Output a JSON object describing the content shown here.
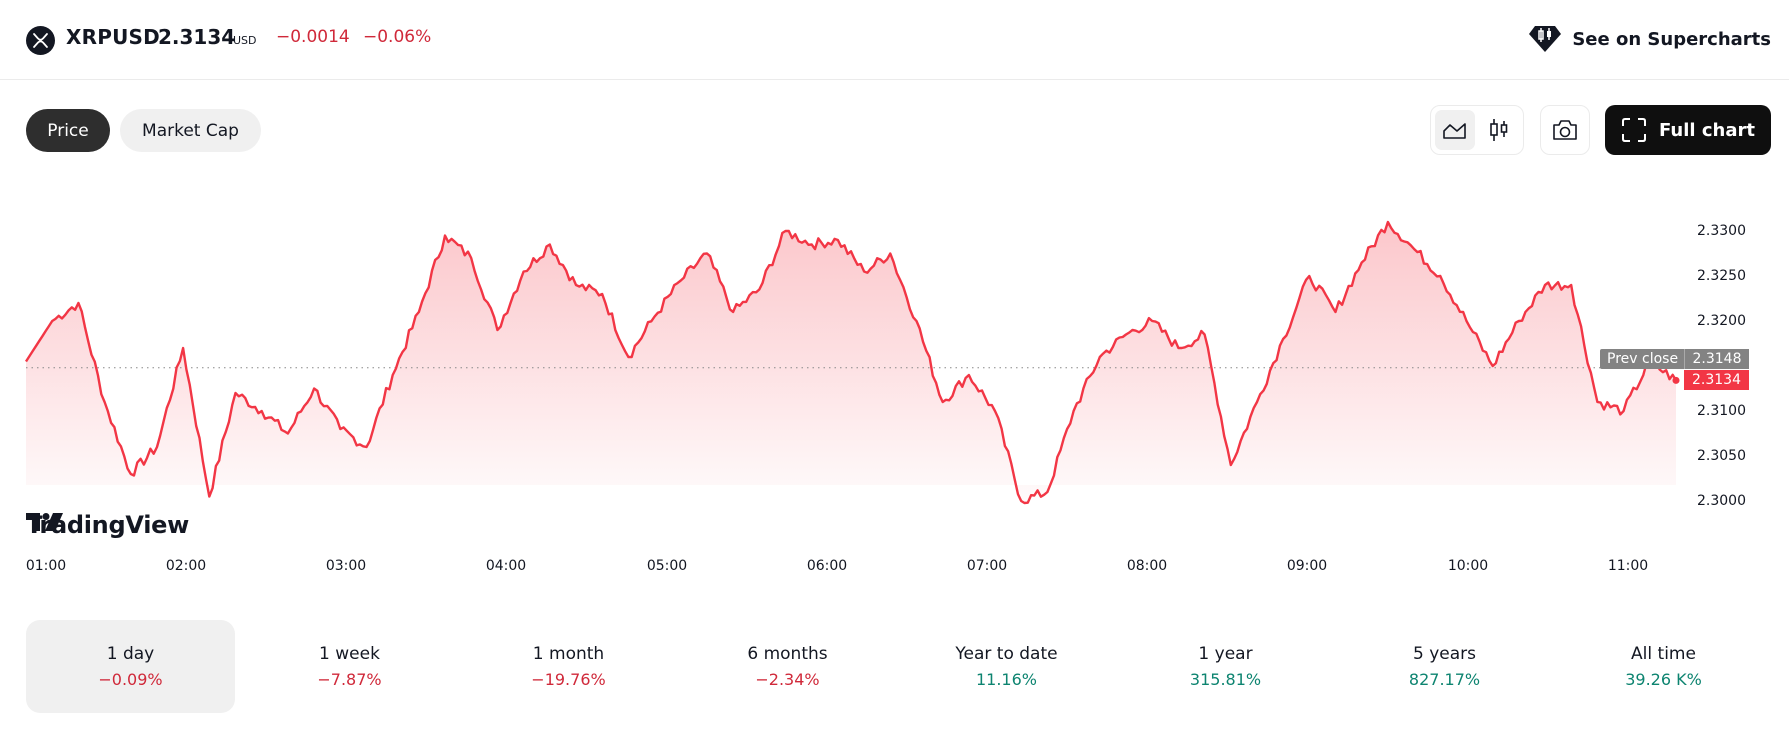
{
  "header": {
    "symbol": "XRPUSD",
    "price": "2.3134",
    "currency": "USD",
    "change": "−0.0014",
    "change_pct": "−0.06%",
    "supercharts_label": "See on Supercharts",
    "icons": {
      "symbol_logo": "xrp-logo-icon",
      "supercharts": "supercharts-icon"
    }
  },
  "tabs": [
    {
      "label": "Price",
      "active": true
    },
    {
      "label": "Market Cap",
      "active": false
    }
  ],
  "toolbar": {
    "chart_types": [
      {
        "name": "area-chart-icon",
        "active": true
      },
      {
        "name": "candlestick-icon",
        "active": false
      }
    ],
    "snapshot_icon": "camera-icon",
    "full_chart_label": "Full chart",
    "full_chart_icon": "fullscreen-icon"
  },
  "chart": {
    "prev_close_label": "Prev close",
    "prev_close_value": "2.3148",
    "current_value": "2.3134",
    "watermark": "TradingView",
    "line_color": "#f23645"
  },
  "chart_data": {
    "type": "area",
    "title": "XRPUSD 1 day",
    "xlabel": "",
    "ylabel": "",
    "x_ticks": [
      "01:00",
      "02:00",
      "03:00",
      "04:00",
      "05:00",
      "06:00",
      "07:00",
      "08:00",
      "09:00",
      "10:00",
      "11:00"
    ],
    "y_ticks": [
      "2.3300",
      "2.3250",
      "2.3200",
      "2.3100",
      "2.3050",
      "2.3000"
    ],
    "ylim": [
      2.2955,
      2.3365
    ],
    "grid": false,
    "reference_lines": [
      {
        "label": "Prev close",
        "value": 2.3148,
        "style": "dotted"
      }
    ],
    "last_value": 2.3134,
    "series": [
      {
        "name": "XRPUSD",
        "x": [
          "00:50",
          "01:00",
          "01:10",
          "01:20",
          "01:30",
          "01:40",
          "01:50",
          "02:00",
          "02:10",
          "02:20",
          "02:30",
          "02:40",
          "02:50",
          "03:00",
          "03:10",
          "03:20",
          "03:30",
          "03:40",
          "03:50",
          "04:00",
          "04:10",
          "04:20",
          "04:30",
          "04:40",
          "04:50",
          "05:00",
          "05:10",
          "05:20",
          "05:30",
          "05:40",
          "05:50",
          "06:00",
          "06:10",
          "06:20",
          "06:30",
          "06:40",
          "06:50",
          "07:00",
          "07:10",
          "07:20",
          "07:30",
          "07:40",
          "07:50",
          "08:00",
          "08:10",
          "08:20",
          "08:30",
          "08:40",
          "08:50",
          "09:00",
          "09:10",
          "09:20",
          "09:30",
          "09:40",
          "09:50",
          "10:00",
          "10:10",
          "10:20",
          "10:30",
          "10:40",
          "10:50",
          "11:00",
          "11:10",
          "11:20"
        ],
        "values": [
          2.3155,
          2.32,
          2.322,
          2.311,
          2.303,
          2.306,
          2.317,
          2.3005,
          2.312,
          2.31,
          2.3075,
          2.3125,
          2.308,
          2.306,
          2.314,
          2.321,
          2.3295,
          2.327,
          2.319,
          2.3255,
          2.3285,
          2.324,
          2.323,
          2.316,
          2.3205,
          2.3245,
          2.3275,
          2.321,
          2.3235,
          2.33,
          2.3285,
          2.329,
          2.3255,
          2.3275,
          2.32,
          2.311,
          2.314,
          2.31,
          2.3,
          2.301,
          2.31,
          2.316,
          2.3185,
          2.32,
          2.317,
          2.3185,
          2.304,
          2.311,
          2.318,
          2.325,
          2.321,
          2.3265,
          2.331,
          2.328,
          2.325,
          2.32,
          2.315,
          2.32,
          2.324,
          2.324,
          2.311,
          2.31,
          2.3155,
          2.3134
        ]
      }
    ]
  },
  "periods": [
    {
      "label": "1 day",
      "value": "−0.09%",
      "trend": "neg",
      "active": true
    },
    {
      "label": "1 week",
      "value": "−7.87%",
      "trend": "neg",
      "active": false
    },
    {
      "label": "1 month",
      "value": "−19.76%",
      "trend": "neg",
      "active": false
    },
    {
      "label": "6 months",
      "value": "−2.34%",
      "trend": "neg",
      "active": false
    },
    {
      "label": "Year to date",
      "value": "11.16%",
      "trend": "pos",
      "active": false
    },
    {
      "label": "1 year",
      "value": "315.81%",
      "trend": "pos",
      "active": false
    },
    {
      "label": "5 years",
      "value": "827.17%",
      "trend": "pos",
      "active": false
    },
    {
      "label": "All time",
      "value": "39.26 K%",
      "trend": "pos",
      "active": false
    }
  ]
}
